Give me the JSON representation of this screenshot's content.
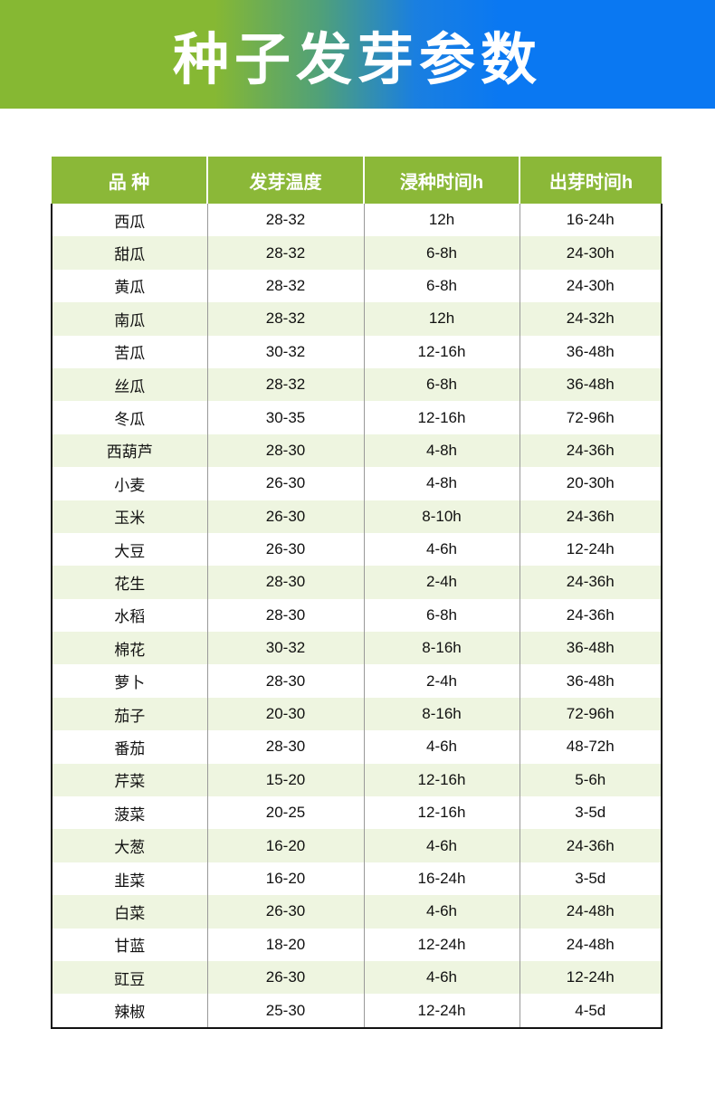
{
  "title": "种子发芽参数",
  "colors": {
    "header_green": "#8bb838",
    "banner_green": "#86b833",
    "banner_blue": "#0a78f2",
    "alt_row": "#eef5e0"
  },
  "table": {
    "headers": [
      "品 种",
      "发芽温度",
      "浸种时间h",
      "出芽时间h"
    ],
    "rows": [
      [
        "西瓜",
        "28-32",
        "12h",
        "16-24h"
      ],
      [
        "甜瓜",
        "28-32",
        "6-8h",
        "24-30h"
      ],
      [
        "黄瓜",
        "28-32",
        "6-8h",
        "24-30h"
      ],
      [
        "南瓜",
        "28-32",
        "12h",
        "24-32h"
      ],
      [
        "苦瓜",
        "30-32",
        "12-16h",
        "36-48h"
      ],
      [
        "丝瓜",
        "28-32",
        "6-8h",
        "36-48h"
      ],
      [
        "冬瓜",
        "30-35",
        "12-16h",
        "72-96h"
      ],
      [
        "西葫芦",
        "28-30",
        "4-8h",
        "24-36h"
      ],
      [
        "小麦",
        "26-30",
        "4-8h",
        "20-30h"
      ],
      [
        "玉米",
        "26-30",
        "8-10h",
        "24-36h"
      ],
      [
        "大豆",
        "26-30",
        "4-6h",
        "12-24h"
      ],
      [
        "花生",
        "28-30",
        "2-4h",
        "24-36h"
      ],
      [
        "水稻",
        "28-30",
        "6-8h",
        "24-36h"
      ],
      [
        "棉花",
        "30-32",
        "8-16h",
        "36-48h"
      ],
      [
        "萝卜",
        "28-30",
        "2-4h",
        "36-48h"
      ],
      [
        "茄子",
        "20-30",
        "8-16h",
        "72-96h"
      ],
      [
        "番茄",
        "28-30",
        "4-6h",
        "48-72h"
      ],
      [
        "芹菜",
        "15-20",
        "12-16h",
        "5-6h"
      ],
      [
        "菠菜",
        "20-25",
        "12-16h",
        "3-5d"
      ],
      [
        "大葱",
        "16-20",
        "4-6h",
        "24-36h"
      ],
      [
        "韭菜",
        "16-20",
        "16-24h",
        "3-5d"
      ],
      [
        "白菜",
        "26-30",
        "4-6h",
        "24-48h"
      ],
      [
        "甘蓝",
        "18-20",
        "12-24h",
        "24-48h"
      ],
      [
        "豇豆",
        "26-30",
        "4-6h",
        "12-24h"
      ],
      [
        "辣椒",
        "25-30",
        "12-24h",
        "4-5d"
      ]
    ]
  }
}
